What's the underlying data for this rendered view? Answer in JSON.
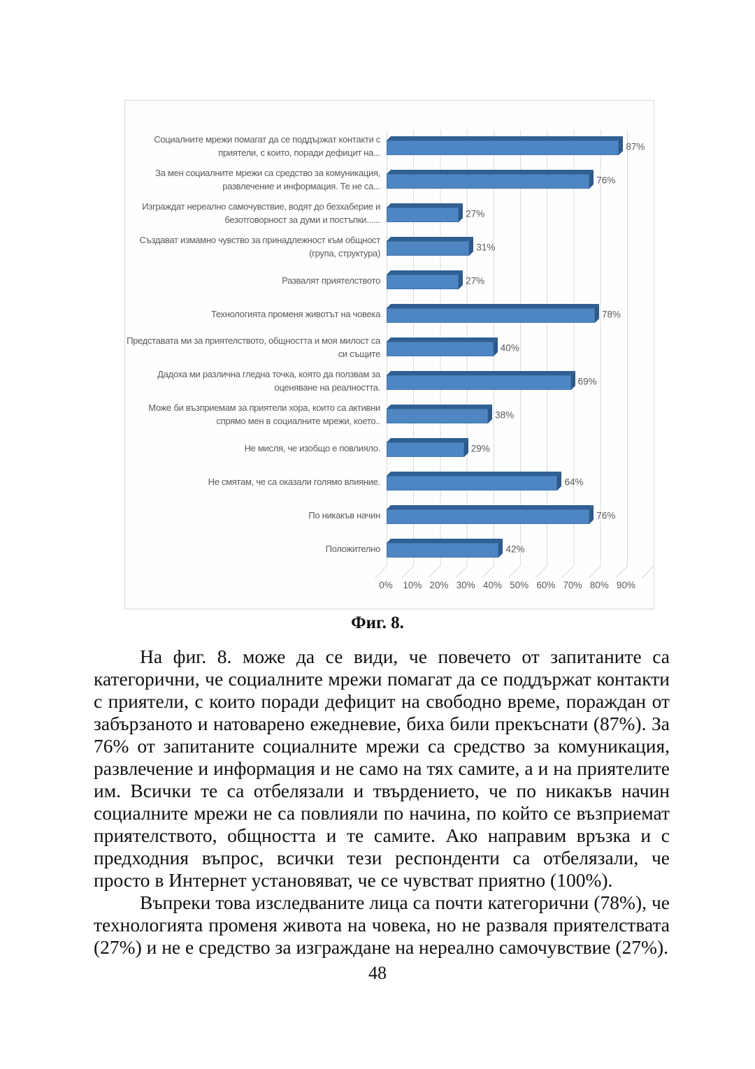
{
  "chart_data": {
    "type": "bar",
    "orientation": "horizontal",
    "style": "3d-bar",
    "categories": [
      "Социалните мрежи помагат да се поддържат контакти с приятели, с които, поради дефицит на...",
      "За мен социалните мрежи са средство за комуникация, развлечение и информация. Те не са...",
      "Изграждат нереално самочувствие, водят до безхаберие и безотговорност за думи и постъпки......",
      "Създават измамно чувство за принадлежност към общност (група, структура)",
      "Развалят приятелството",
      "Технологията променя животът на човека",
      "Представата ми за приятелството, общността и моя милост са си същите",
      "Дадоха ми различна гледна точка, която да ползвам за оценяване на реалността.",
      "Може би възприемам за приятели хора, които са активни спрямо мен в социалните мрежи, което..",
      "Не мисля, че изобщо е повлияло.",
      "Не смятам, че са оказали голямо влияние.",
      "По никакъв начин",
      "Положително"
    ],
    "values": [
      87,
      76,
      27,
      31,
      27,
      78,
      40,
      69,
      38,
      29,
      64,
      76,
      42
    ],
    "value_suffix": "%",
    "x_ticks": [
      "0%",
      "10%",
      "20%",
      "30%",
      "40%",
      "50%",
      "60%",
      "70%",
      "80%",
      "90%"
    ],
    "xlim": [
      0,
      100
    ],
    "grid": true,
    "legend": false,
    "title": "",
    "xlabel": "",
    "ylabel": "",
    "bar_color": "#4e86c4",
    "bar_top_color": "#2f5f93",
    "bar_side_color": "#2c5a8c",
    "grid_color": "#d9d9d9",
    "text_color": "#595959"
  },
  "document": {
    "caption": "Фиг. 8.",
    "paragraphs": [
      "На фиг. 8. може да се види, че повечето от запитаните са категорични, че социалните мрежи помагат да се поддържат контакти с приятели, с които поради дефицит на свободно време, пораждан от забързаното и натоварено ежедневие, биха били прекъснати (87%). За 76% от запитаните социалните мрежи са средство за комуникация, развлечение и информация и не само на тях самите, а и на приятелите им. Всички те са отбелязали и твърдението, че по никакъв начин социалните мрежи не са повлияли по начина, по който се възприемат приятелството, общността и те самите. Ако направим връзка и с предходния въпрос, всички тези респонденти са отбелязали, че просто в Интернет установяват, че се чувстват приятно (100%).",
      "Въпреки това изследваните лица са почти категорични (78%), че технологията променя живота на човека, но не разваля приятелствата (27%) и не е средство за изграждане на нереално самочувствие (27%)."
    ],
    "page_number": "48"
  }
}
